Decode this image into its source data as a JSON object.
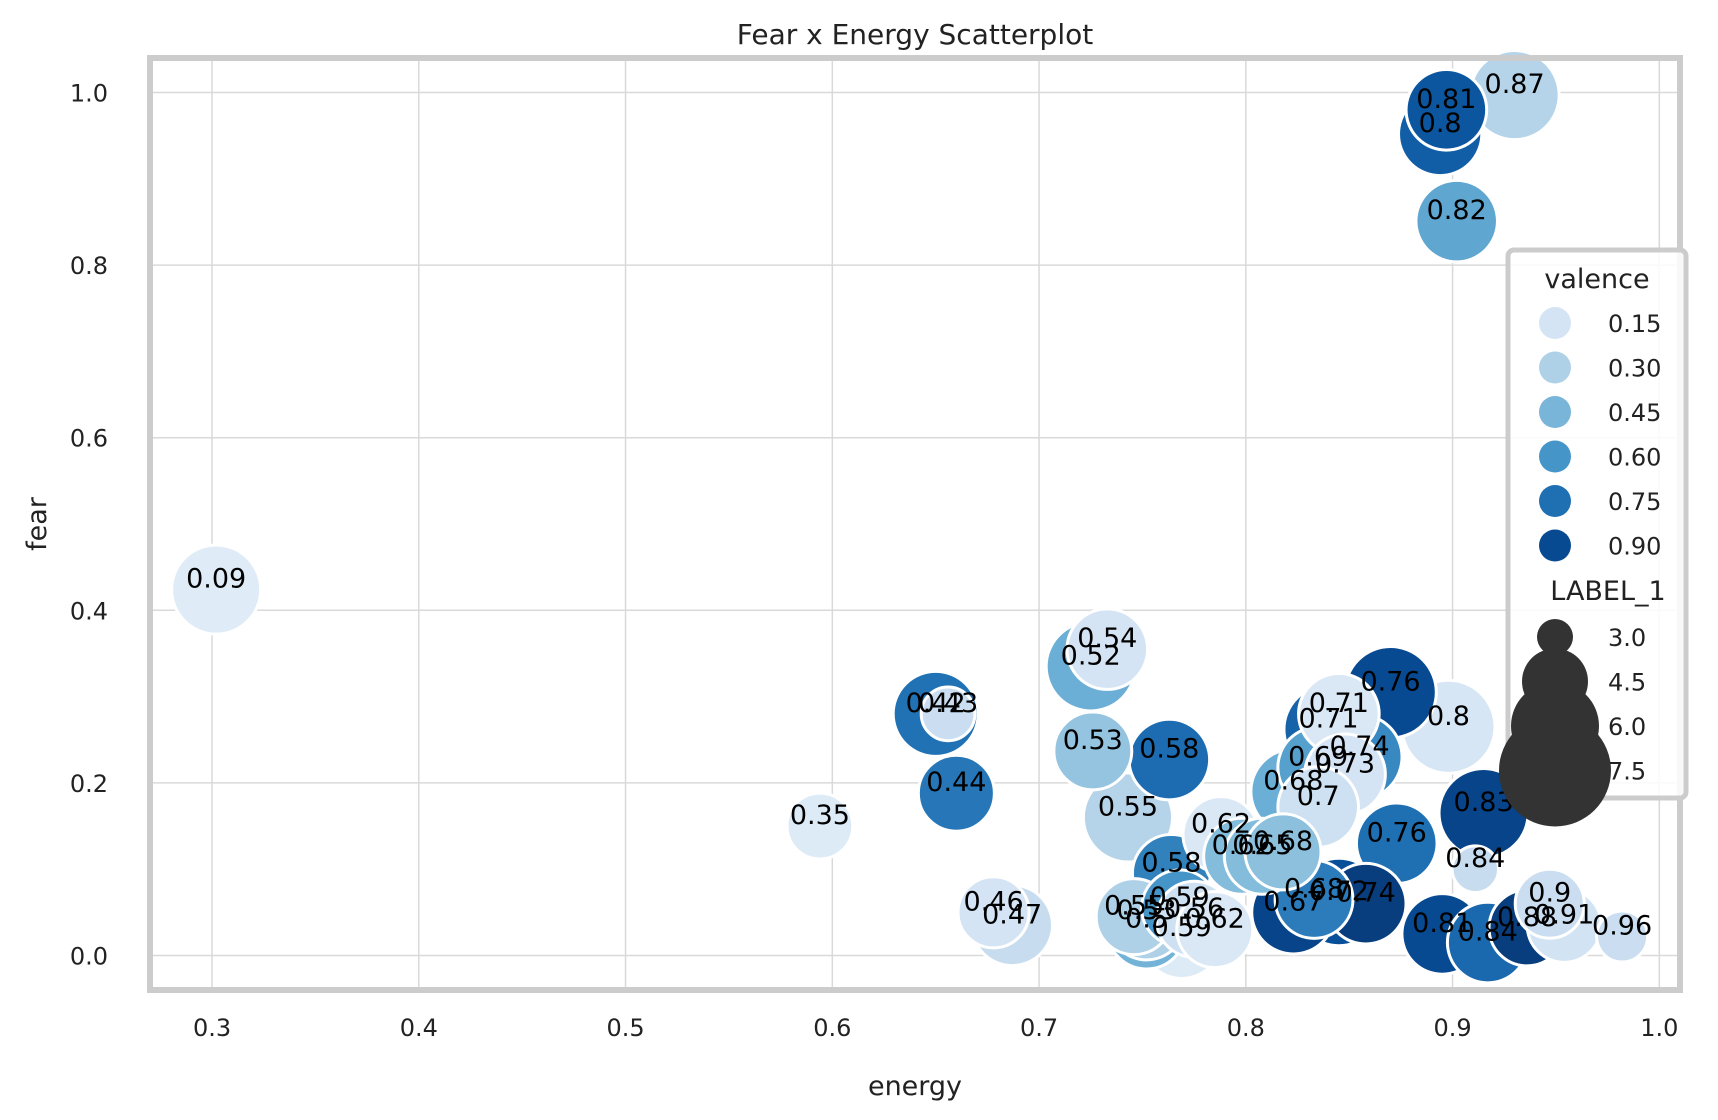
{
  "chart_data": {
    "type": "scatter",
    "title": "Fear x Energy Scatterplot",
    "xlabel": "energy",
    "ylabel": "fear",
    "xlim": [
      0.27,
      1.01
    ],
    "ylim": [
      -0.04,
      1.04
    ],
    "xticks": [
      "0.3",
      "0.4",
      "0.5",
      "0.6",
      "0.7",
      "0.8",
      "0.9",
      "1.0"
    ],
    "yticks": [
      "0.0",
      "0.2",
      "0.4",
      "0.6",
      "0.8",
      "1.0"
    ],
    "grid": true,
    "legend_placement": "right",
    "hue_variable": "valence",
    "size_variable": "LABEL_1",
    "color_scale": "Blues",
    "legend": {
      "hue_title": "valence",
      "hue_entries": [
        {
          "label": "0.15",
          "value": 0.15
        },
        {
          "label": "0.30",
          "value": 0.3
        },
        {
          "label": "0.45",
          "value": 0.45
        },
        {
          "label": "0.60",
          "value": 0.6
        },
        {
          "label": "0.75",
          "value": 0.75
        },
        {
          "label": "0.90",
          "value": 0.9
        }
      ],
      "size_title": "LABEL_1",
      "size_entries": [
        {
          "label": "3.0",
          "value": 3.0
        },
        {
          "label": "4.5",
          "value": 4.5
        },
        {
          "label": "6.0",
          "value": 6.0
        },
        {
          "label": "7.5",
          "value": 7.5
        }
      ]
    },
    "points": [
      {
        "x": 0.302,
        "y": 0.424,
        "valence": 0.09,
        "size": 5.5,
        "label": "0.09"
      },
      {
        "x": 0.594,
        "y": 0.15,
        "valence": 0.1,
        "size": 3.0,
        "label": "0.35"
      },
      {
        "x": 0.65,
        "y": 0.28,
        "valence": 0.74,
        "size": 5.0,
        "label": "0.42"
      },
      {
        "x": 0.656,
        "y": 0.28,
        "valence": 0.2,
        "size": 2.0,
        "label": "0.43"
      },
      {
        "x": 0.66,
        "y": 0.188,
        "valence": 0.72,
        "size": 4.0,
        "label": "0.44"
      },
      {
        "x": 0.678,
        "y": 0.05,
        "valence": 0.15,
        "size": 3.5,
        "label": "0.46"
      },
      {
        "x": 0.687,
        "y": 0.035,
        "valence": 0.22,
        "size": 4.5,
        "label": "0.47"
      },
      {
        "x": 0.733,
        "y": 0.355,
        "valence": 0.15,
        "size": 4.5,
        "label": "0.54"
      },
      {
        "x": 0.725,
        "y": 0.335,
        "valence": 0.48,
        "size": 5.5,
        "label": "0.52"
      },
      {
        "x": 0.726,
        "y": 0.237,
        "valence": 0.38,
        "size": 4.2,
        "label": "0.53"
      },
      {
        "x": 0.763,
        "y": 0.227,
        "valence": 0.76,
        "size": 4.5,
        "label": "0.58"
      },
      {
        "x": 0.743,
        "y": 0.16,
        "valence": 0.28,
        "size": 5.5,
        "label": "0.55"
      },
      {
        "x": 0.764,
        "y": 0.095,
        "valence": 0.68,
        "size": 4.2,
        "label": "0.58"
      },
      {
        "x": 0.746,
        "y": 0.045,
        "valence": 0.3,
        "size": 4.0,
        "label": "0.55"
      },
      {
        "x": 0.752,
        "y": 0.04,
        "valence": 0.3,
        "size": 4.2,
        "label": "0.53"
      },
      {
        "x": 0.768,
        "y": 0.055,
        "valence": 0.6,
        "size": 4.0,
        "label": "0.59"
      },
      {
        "x": 0.775,
        "y": 0.042,
        "valence": 0.18,
        "size": 4.0,
        "label": "0.56"
      },
      {
        "x": 0.752,
        "y": 0.03,
        "valence": 0.46,
        "size": 4.3,
        "label": "0.5"
      },
      {
        "x": 0.769,
        "y": 0.02,
        "valence": 0.1,
        "size": 4.5,
        "label": "0.59"
      },
      {
        "x": 0.785,
        "y": 0.03,
        "valence": 0.12,
        "size": 4.0,
        "label": "0.62"
      },
      {
        "x": 0.788,
        "y": 0.14,
        "valence": 0.12,
        "size": 4.0,
        "label": "0.62"
      },
      {
        "x": 0.798,
        "y": 0.115,
        "valence": 0.42,
        "size": 4.0,
        "label": "0.62"
      },
      {
        "x": 0.808,
        "y": 0.115,
        "valence": 0.42,
        "size": 4.0,
        "label": "0.65"
      },
      {
        "x": 0.818,
        "y": 0.12,
        "valence": 0.4,
        "size": 4.0,
        "label": "0.68"
      },
      {
        "x": 0.823,
        "y": 0.19,
        "valence": 0.48,
        "size": 5.0,
        "label": "0.68"
      },
      {
        "x": 0.835,
        "y": 0.218,
        "valence": 0.55,
        "size": 4.5,
        "label": "0.69"
      },
      {
        "x": 0.845,
        "y": 0.28,
        "valence": 0.12,
        "size": 4.5,
        "label": "0.71"
      },
      {
        "x": 0.84,
        "y": 0.262,
        "valence": 0.8,
        "size": 5.5,
        "label": "0.71"
      },
      {
        "x": 0.855,
        "y": 0.23,
        "valence": 0.65,
        "size": 5.0,
        "label": "0.74"
      },
      {
        "x": 0.848,
        "y": 0.21,
        "valence": 0.15,
        "size": 4.5,
        "label": "0.73"
      },
      {
        "x": 0.835,
        "y": 0.172,
        "valence": 0.18,
        "size": 4.5,
        "label": "0.7"
      },
      {
        "x": 0.87,
        "y": 0.305,
        "valence": 0.9,
        "size": 5.8,
        "label": "0.76"
      },
      {
        "x": 0.873,
        "y": 0.13,
        "valence": 0.75,
        "size": 4.5,
        "label": "0.76"
      },
      {
        "x": 0.898,
        "y": 0.265,
        "valence": 0.14,
        "size": 6.0,
        "label": "0.8"
      },
      {
        "x": 0.915,
        "y": 0.165,
        "valence": 0.92,
        "size": 5.5,
        "label": "0.83"
      },
      {
        "x": 0.911,
        "y": 0.1,
        "valence": 0.22,
        "size": 1.5,
        "label": "0.84"
      },
      {
        "x": 0.823,
        "y": 0.05,
        "valence": 0.92,
        "size": 4.8,
        "label": "0.67"
      },
      {
        "x": 0.845,
        "y": 0.062,
        "valence": 0.88,
        "size": 5.3,
        "label": "0.72"
      },
      {
        "x": 0.858,
        "y": 0.06,
        "valence": 0.95,
        "size": 4.5,
        "label": "0.74"
      },
      {
        "x": 0.833,
        "y": 0.065,
        "valence": 0.7,
        "size": 4.2,
        "label": "0.68"
      },
      {
        "x": 0.895,
        "y": 0.025,
        "valence": 0.9,
        "size": 4.5,
        "label": "0.81"
      },
      {
        "x": 0.917,
        "y": 0.015,
        "valence": 0.78,
        "size": 4.5,
        "label": "0.84"
      },
      {
        "x": 0.936,
        "y": 0.032,
        "valence": 0.95,
        "size": 4.0,
        "label": "0.88"
      },
      {
        "x": 0.947,
        "y": 0.06,
        "valence": 0.2,
        "size": 3.3,
        "label": "0.9"
      },
      {
        "x": 0.954,
        "y": 0.035,
        "valence": 0.16,
        "size": 3.8,
        "label": "0.91"
      },
      {
        "x": 0.982,
        "y": 0.022,
        "valence": 0.2,
        "size": 1.8,
        "label": "0.96"
      },
      {
        "x": 0.897,
        "y": 0.98,
        "valence": 0.85,
        "size": 4.5,
        "label": "0.81"
      },
      {
        "x": 0.894,
        "y": 0.952,
        "valence": 0.82,
        "size": 4.8,
        "label": "0.8"
      },
      {
        "x": 0.93,
        "y": 0.997,
        "valence": 0.28,
        "size": 5.5,
        "label": "0.87"
      },
      {
        "x": 0.902,
        "y": 0.851,
        "valence": 0.52,
        "size": 4.6,
        "label": "0.82"
      }
    ]
  }
}
